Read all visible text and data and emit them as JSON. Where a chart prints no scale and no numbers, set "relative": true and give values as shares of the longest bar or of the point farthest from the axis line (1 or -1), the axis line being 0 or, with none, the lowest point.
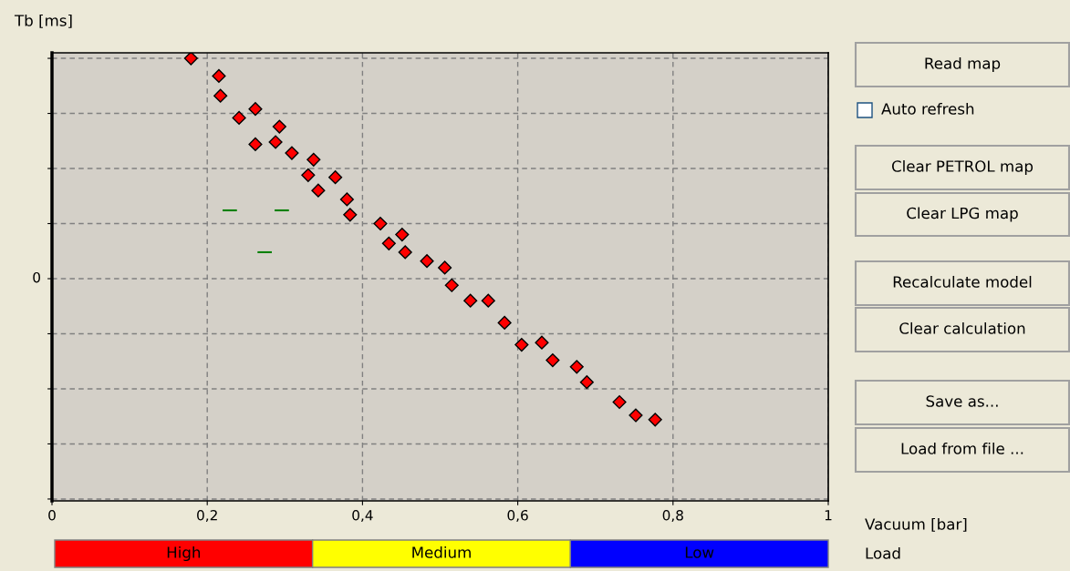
{
  "chart_data": [
    {
      "type": "scatter",
      "ylabel": "Tb [ms]",
      "xlabel": "Vacuum [bar]",
      "relative": true,
      "grid": true,
      "xlim": [
        0,
        1
      ],
      "xticks": [
        {
          "value": 0,
          "label": "0"
        },
        {
          "value": 0.2,
          "label": "0,2"
        },
        {
          "value": 0.4,
          "label": "0,4"
        },
        {
          "value": 0.6,
          "label": "0,6"
        },
        {
          "value": 0.8,
          "label": "0,8"
        },
        {
          "value": 1,
          "label": "1"
        }
      ],
      "annotations": [
        "0"
      ],
      "series": [
        {
          "color": "#ff0000",
          "marker": "diamond",
          "x": [
            0.179,
            0.215,
            0.217,
            0.241,
            0.262,
            0.262,
            0.288,
            0.293,
            0.309,
            0.337,
            0.33,
            0.365,
            0.343,
            0.38,
            0.384,
            0.423,
            0.434,
            0.451,
            0.455,
            0.483,
            0.506,
            0.515,
            0.539,
            0.562,
            0.583,
            0.605,
            0.631,
            0.645,
            0.676,
            0.689,
            0.731,
            0.752,
            0.777
          ],
          "values": [
            1.0,
            0.92,
            0.83,
            0.73,
            0.77,
            0.61,
            0.62,
            0.69,
            0.57,
            0.54,
            0.47,
            0.46,
            0.4,
            0.36,
            0.29,
            0.25,
            0.16,
            0.2,
            0.12,
            0.08,
            0.05,
            -0.03,
            -0.1,
            -0.1,
            -0.2,
            -0.3,
            -0.29,
            -0.37,
            -0.4,
            -0.47,
            -0.56,
            -0.62,
            -0.64
          ]
        },
        {
          "type": "line",
          "color": "#008000",
          "x": [
            0.221,
            0.237
          ],
          "values": [
            0.31,
            0.31
          ]
        },
        {
          "type": "line",
          "color": "#008000",
          "x": [
            0.288,
            0.304
          ],
          "values": [
            0.31,
            0.31
          ]
        },
        {
          "type": "line",
          "color": "#008000",
          "x": [
            0.266,
            0.282
          ],
          "values": [
            0.12,
            0.12
          ]
        }
      ]
    },
    {
      "type": "other",
      "annotations": [
        "Read map",
        "Auto refresh",
        "Clear PETROL map",
        "Clear LPG map",
        "Recalculate model",
        "Clear calculation",
        "Save as...",
        "Load from file ..."
      ]
    },
    {
      "type": "other",
      "ylabel": "Load",
      "categories": [
        "High",
        "Medium",
        "Low"
      ],
      "colors": [
        "#ff0000",
        "#ffff00",
        "#0000ff"
      ]
    }
  ]
}
